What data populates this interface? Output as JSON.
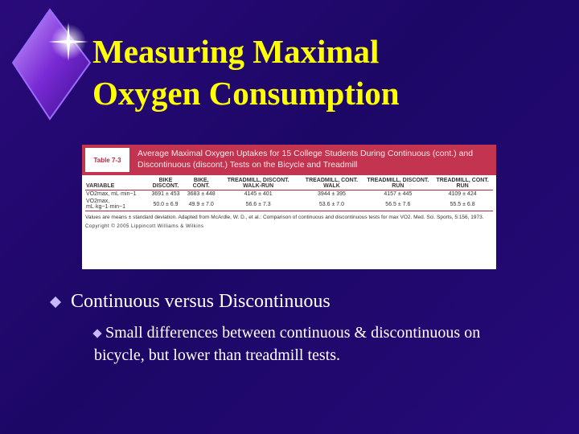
{
  "title": "Measuring Maximal Oxygen Consumption",
  "table": {
    "label": "Table 7-3",
    "caption": "Average Maximal Oxygen Uptakes for 15 College Students During Continuous (cont.) and Discontinuous (discont.) Tests on the Bicycle and Treadmill",
    "columns": [
      "VARIABLE",
      "BIKE DISCONT.",
      "BIKE, CONT.",
      "TREADMILL, DISCONT. WALK-RUN",
      "TREADMILL, CONT. WALK",
      "TREADMILL, DISCONT. RUN",
      "TREADMILL, CONT. RUN"
    ],
    "rows": [
      [
        "VO2max, mL·min−1",
        "3691 ± 453",
        "3683 ± 448",
        "4145 ± 401",
        "3944 ± 395",
        "4157 ± 445",
        "4109 ± 424"
      ],
      [
        "VO2max, mL·kg−1·min−1",
        "50.0 ± 6.9",
        "49.9 ± 7.0",
        "56.6 ± 7.3",
        "53.6 ± 7.0",
        "56.5 ± 7.6",
        "55.5 ± 6.8"
      ]
    ],
    "footnote": "Values are means ± standard deviation. Adapted from McArdle, W. D., et al.: Comparison of continuous and discontinuous tests for max VO2. Med. Sci. Sports, 5:156, 1973.",
    "copyright": "Copyright © 2005 Lippincott Williams & Wilkins"
  },
  "bullets": [
    {
      "text": "Continuous versus Discontinuous",
      "sub": [
        "Small differences between continuous & discontinuous on bicycle, but lower than treadmill tests."
      ]
    }
  ]
}
